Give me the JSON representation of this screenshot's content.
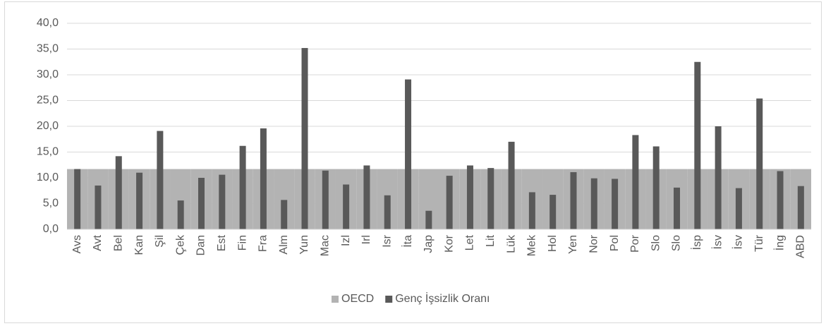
{
  "chart_data": {
    "type": "bar",
    "categories": [
      "Avs",
      "Avt",
      "Bel",
      "Kan",
      "Şil",
      "Çek",
      "Dan",
      "Est",
      "Fin",
      "Fra",
      "Alm",
      "Yun",
      "Mac",
      "Izl",
      "Irl",
      "Isr",
      "İta",
      "Jap",
      "Kor",
      "Let",
      "Lit",
      "Lük",
      "Mek",
      "Hol",
      "Yen",
      "Nor",
      "Pol",
      "Por",
      "Slo",
      "Slo",
      "İsp",
      "İsv",
      "İsv",
      "Tür",
      "İng",
      "ABD"
    ],
    "series": [
      {
        "name": "OECD",
        "color": "#b3b3b3",
        "values": [
          11.7,
          11.7,
          11.7,
          11.7,
          11.7,
          11.7,
          11.7,
          11.7,
          11.7,
          11.7,
          11.7,
          11.7,
          11.7,
          11.7,
          11.7,
          11.7,
          11.7,
          11.7,
          11.7,
          11.7,
          11.7,
          11.7,
          11.7,
          11.7,
          11.7,
          11.7,
          11.7,
          11.7,
          11.7,
          11.7,
          11.7,
          11.7,
          11.7,
          11.7,
          11.7,
          11.7
        ]
      },
      {
        "name": "Genç İşsizlik Oranı",
        "color": "#595959",
        "values": [
          11.7,
          8.5,
          14.2,
          11.0,
          19.1,
          5.6,
          10.0,
          10.6,
          16.2,
          19.6,
          5.7,
          35.2,
          11.4,
          8.7,
          12.4,
          6.6,
          29.1,
          3.6,
          10.4,
          12.4,
          11.9,
          17.0,
          7.2,
          6.7,
          11.1,
          9.9,
          9.8,
          18.3,
          16.1,
          8.1,
          32.5,
          20.0,
          8.0,
          25.4,
          11.3,
          8.4
        ]
      }
    ],
    "ylim": [
      0,
      40
    ],
    "yticks": [
      {
        "value": 0,
        "label": "0,0"
      },
      {
        "value": 5,
        "label": "5,0"
      },
      {
        "value": 10,
        "label": "10,0"
      },
      {
        "value": 15,
        "label": "15,0"
      },
      {
        "value": 20,
        "label": "20,0"
      },
      {
        "value": 25,
        "label": "25,0"
      },
      {
        "value": 30,
        "label": "30,0"
      },
      {
        "value": 35,
        "label": "35,0"
      },
      {
        "value": 40,
        "label": "40,0"
      }
    ],
    "grid": true,
    "legend": "bottom"
  }
}
